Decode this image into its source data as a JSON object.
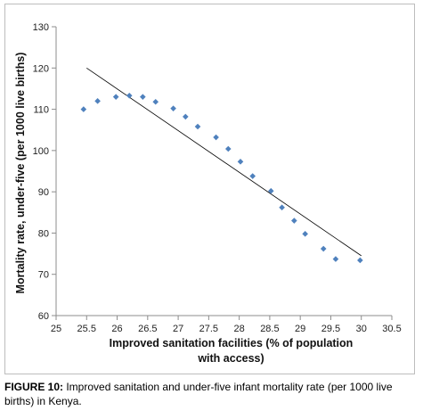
{
  "chart_data": {
    "type": "scatter",
    "xlabel_lines": [
      "Improved sanitation facilities (% of population",
      "with access)"
    ],
    "ylabel": "Mortality rate, under-five (per 1000 live births)",
    "xlim": [
      25,
      30.5
    ],
    "ylim": [
      60,
      130
    ],
    "xticks": [
      "25",
      "25.5",
      "26",
      "26.5",
      "27",
      "27.5",
      "28",
      "28.5",
      "29",
      "29.5",
      "30",
      "30.5"
    ],
    "yticks": [
      "60",
      "70",
      "80",
      "90",
      "100",
      "110",
      "120",
      "130"
    ],
    "grid": false,
    "marker_color": "#4f81bd",
    "points": [
      {
        "x": 25.45,
        "y": 110
      },
      {
        "x": 25.68,
        "y": 112
      },
      {
        "x": 25.98,
        "y": 113
      },
      {
        "x": 26.2,
        "y": 113.3
      },
      {
        "x": 26.42,
        "y": 113
      },
      {
        "x": 26.63,
        "y": 111.8
      },
      {
        "x": 26.92,
        "y": 110.2
      },
      {
        "x": 27.12,
        "y": 108.2
      },
      {
        "x": 27.32,
        "y": 105.8
      },
      {
        "x": 27.62,
        "y": 103.2
      },
      {
        "x": 27.82,
        "y": 100.4
      },
      {
        "x": 28.02,
        "y": 97.3
      },
      {
        "x": 28.22,
        "y": 93.8
      },
      {
        "x": 28.52,
        "y": 90.2
      },
      {
        "x": 28.7,
        "y": 86.2
      },
      {
        "x": 28.9,
        "y": 83
      },
      {
        "x": 29.08,
        "y": 79.8
      },
      {
        "x": 29.38,
        "y": 76.2
      },
      {
        "x": 29.58,
        "y": 73.7
      },
      {
        "x": 29.98,
        "y": 73.4
      }
    ],
    "trendline": {
      "x": [
        25.5,
        30
      ],
      "y": [
        120,
        74.5
      ],
      "color": "#000000"
    }
  },
  "caption": {
    "label": "FIGURE 10:",
    "text": " Improved sanitation and under-five infant mortality rate (per 1000 live births) in Kenya."
  }
}
